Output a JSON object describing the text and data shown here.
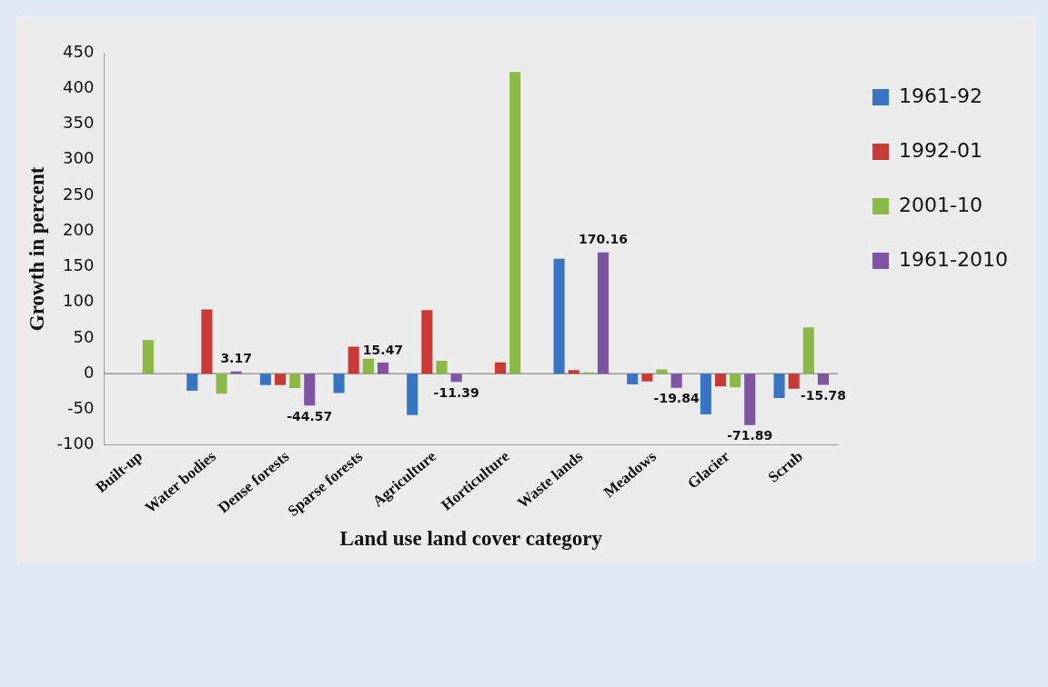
{
  "chart_data": {
    "type": "bar",
    "xlabel": "Land use land cover category",
    "ylabel": "Growth in percent",
    "categories": [
      "Built-up",
      "Water bodies",
      "Dense forests",
      "Sparse forests",
      "Agriculture",
      "Horticulture",
      "Waste lands",
      "Meadows",
      "Glacier",
      "Scrub"
    ],
    "series": [
      {
        "name": "1961-92",
        "color": "#3a75c4",
        "values": [
          null,
          -24,
          -16,
          -27,
          -58,
          null,
          161,
          -15,
          -57,
          -34
        ]
      },
      {
        "name": "1992-01",
        "color": "#c83a36",
        "values": [
          null,
          90,
          -16,
          38,
          89,
          16,
          5,
          -11,
          -18,
          -21
        ]
      },
      {
        "name": "2001-10",
        "color": "#8cb848",
        "values": [
          47,
          -28,
          -20,
          21,
          18,
          423,
          2,
          6,
          -19,
          65
        ]
      },
      {
        "name": "1961-2010",
        "color": "#7d55a3",
        "values": [
          null,
          3.17,
          -44.57,
          15.47,
          -11.39,
          null,
          170.16,
          -19.84,
          -71.89,
          -15.78
        ],
        "value_labels": [
          null,
          "3.17",
          "-44.57",
          "15.47",
          "-11.39",
          null,
          "170.16",
          "-19.84",
          "-71.89",
          "-15.78"
        ]
      }
    ],
    "ylim": [
      -100,
      450
    ],
    "yticks": [
      -100,
      -50,
      0,
      50,
      100,
      150,
      200,
      250,
      300,
      350,
      400,
      450
    ],
    "ref_lines": [
      {
        "axis": "y",
        "value": 0,
        "color": "#999999"
      }
    ],
    "legend": "right"
  }
}
